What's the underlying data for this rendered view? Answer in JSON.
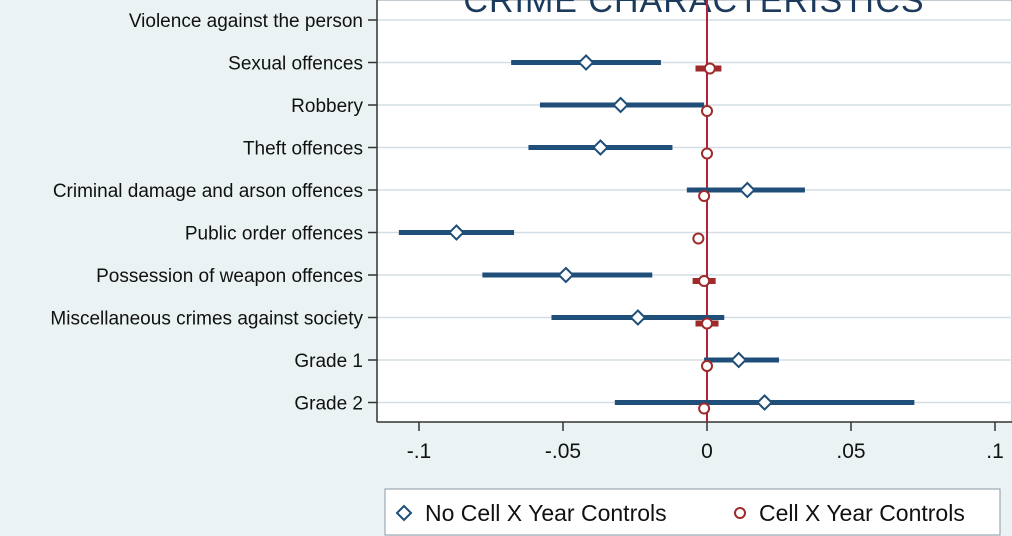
{
  "chart_data": {
    "type": "coefficient-plot",
    "title": "CRIME CHARACTERISTICS",
    "categories": [
      "Violence against the person",
      "Sexual offences",
      "Robbery",
      "Theft offences",
      "Criminal damage and arson offences",
      "Public order offences",
      "Possession of weapon offences",
      "Miscellaneous crimes against society",
      "Grade 1",
      "Grade 2"
    ],
    "xlim": [
      -0.1,
      0.1
    ],
    "xticks": [
      -0.1,
      -0.05,
      0,
      0.05,
      0.1
    ],
    "xtick_labels": [
      "-.1",
      "-.05",
      "0",
      ".05",
      ".1"
    ],
    "reference_line": 0,
    "grid": "horizontal",
    "legend_position": "bottom",
    "series": [
      {
        "name": "No Cell X Year Controls",
        "marker": "diamond",
        "color": "#1f4e79",
        "estimates": [
          null,
          -0.042,
          -0.03,
          -0.037,
          0.014,
          -0.087,
          -0.049,
          -0.024,
          0.011,
          0.02
        ],
        "ci_low": [
          null,
          -0.068,
          -0.058,
          -0.062,
          -0.007,
          -0.107,
          -0.078,
          -0.054,
          -0.001,
          -0.032
        ],
        "ci_high": [
          null,
          -0.016,
          -0.001,
          -0.012,
          0.034,
          -0.067,
          -0.019,
          0.006,
          0.025,
          0.072
        ]
      },
      {
        "name": "Cell X Year Controls",
        "marker": "circle",
        "color": "#9e2a2b",
        "estimates": [
          null,
          0.001,
          0.0,
          0.0,
          -0.001,
          -0.003,
          -0.001,
          0.0,
          0.0,
          -0.001
        ],
        "ci_low": [
          null,
          -0.004,
          -0.001,
          -0.001,
          -0.002,
          -0.004,
          -0.005,
          -0.004,
          -0.001,
          -0.002
        ],
        "ci_high": [
          null,
          0.005,
          0.001,
          0.001,
          0.0,
          -0.002,
          0.003,
          0.004,
          0.001,
          0.0
        ]
      }
    ]
  }
}
